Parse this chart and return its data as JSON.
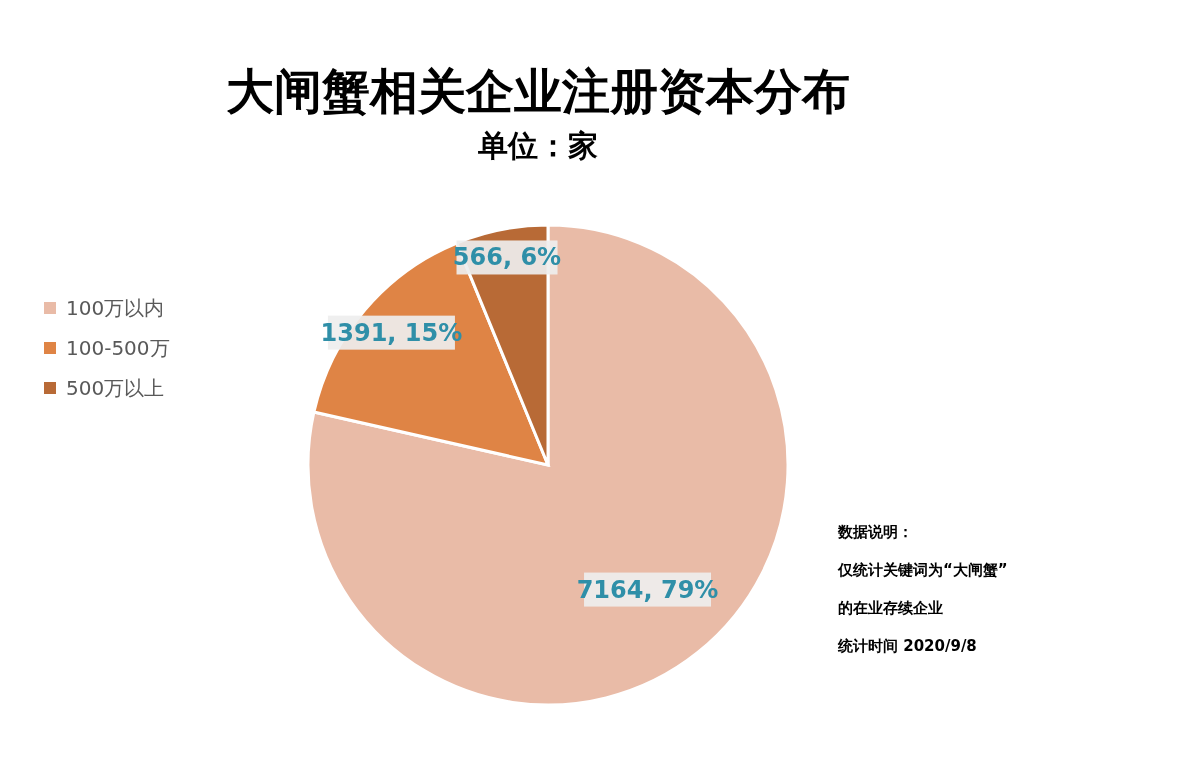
{
  "chart_data": {
    "type": "pie",
    "title": "大闸蟹相关企业注册资本分布",
    "subtitle": "单位：家",
    "categories": [
      "100万以内",
      "100-500万",
      "500万以上"
    ],
    "values": [
      7164,
      1391,
      566
    ],
    "colors": [
      "#e9bba7",
      "#df8445",
      "#b86a36"
    ],
    "value_labels": [
      "7164, 79%",
      "1391, 15%",
      "566, 6%"
    ],
    "legend": "left",
    "annotations": [
      "数据说明：",
      "仅统计关键词为“大闸蟹”",
      "的在业存续企业",
      "统计时间 2020/9/8"
    ]
  }
}
